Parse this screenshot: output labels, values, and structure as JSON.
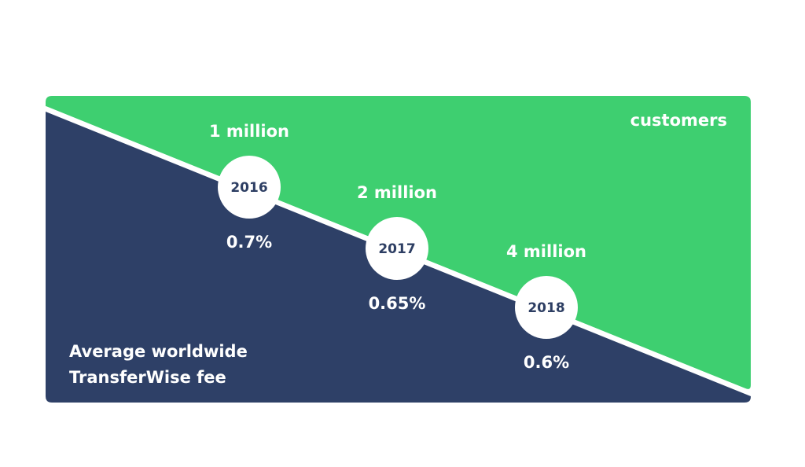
{
  "milestones": [
    {
      "year": "2016",
      "customers": "1 million",
      "fee": "0.7%"
    },
    {
      "year": "2017",
      "customers": "2 million",
      "fee": "0.65%"
    },
    {
      "year": "2018",
      "customers": "4 million",
      "fee": "0.6%"
    }
  ],
  "labels": {
    "top": "customers",
    "bottom": [
      "Average worldwide",
      "TransferWise fee"
    ]
  }
}
